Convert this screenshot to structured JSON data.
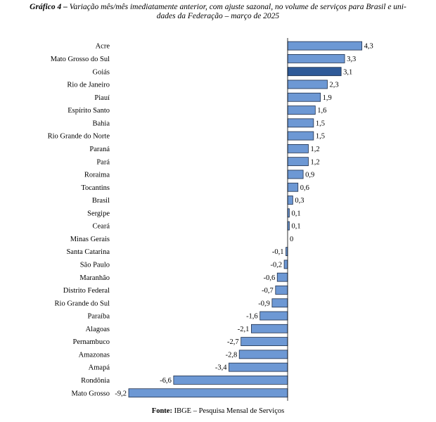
{
  "header": {
    "title_label": "Gráfico 4 –",
    "title_line1": "Variação mês/mês imediatamente anterior, com ajuste sazonal, no volume de serviços para Brasil e uni-",
    "title_line2": "dades da Federação – março de 2025"
  },
  "footer": {
    "source_label": "Fonte:",
    "source_text": "IBGE – Pesquisa Mensal de Serviços"
  },
  "chart_data": {
    "type": "bar",
    "orientation": "horizontal",
    "title": "Gráfico 4 – Variação mês/mês imediatamente anterior, com ajuste sazonal, no volume de serviços para Brasil e unidades da Federação – março de 2025",
    "xlabel": "",
    "ylabel": "",
    "grid": false,
    "xlim": [
      -9.2,
      4.3
    ],
    "categories": [
      "Acre",
      "Mato Grosso do Sul",
      "Goiás",
      "Rio de Janeiro",
      "Piauí",
      "Espírito Santo",
      "Bahia",
      "Rio Grande do Norte",
      "Paraná",
      "Pará",
      "Roraima",
      "Tocantins",
      "Brasil",
      "Sergipe",
      "Ceará",
      "Minas Gerais",
      "Santa Catarina",
      "São Paulo",
      "Maranhão",
      "Distrito Federal",
      "Rio Grande do Sul",
      "Paraíba",
      "Alagoas",
      "Pernambuco",
      "Amazonas",
      "Amapá",
      "Rondônia",
      "Mato Grosso"
    ],
    "values": [
      4.3,
      3.3,
      3.1,
      2.3,
      1.9,
      1.6,
      1.5,
      1.5,
      1.2,
      1.2,
      0.9,
      0.6,
      0.3,
      0.1,
      0.1,
      0,
      -0.1,
      -0.2,
      -0.6,
      -0.7,
      -0.9,
      -1.6,
      -2.1,
      -2.7,
      -2.8,
      -3.4,
      -6.6,
      -9.2
    ],
    "value_labels": [
      "4,3",
      "3,3",
      "3,1",
      "2,3",
      "1,9",
      "1,6",
      "1,5",
      "1,5",
      "1,2",
      "1,2",
      "0,9",
      "0,6",
      "0,3",
      "0,1",
      "0,1",
      "0",
      "-0,1",
      "-0,2",
      "-0,6",
      "-0,7",
      "-0,9",
      "-1,6",
      "-2,1",
      "-2,7",
      "-2,8",
      "-3,4",
      "-6,6",
      "-9,2"
    ],
    "highlight_category": "Goiás",
    "colors": {
      "bar": "#6d98d4",
      "highlight": "#2f5a98",
      "stroke": "#1f2f4a"
    }
  }
}
